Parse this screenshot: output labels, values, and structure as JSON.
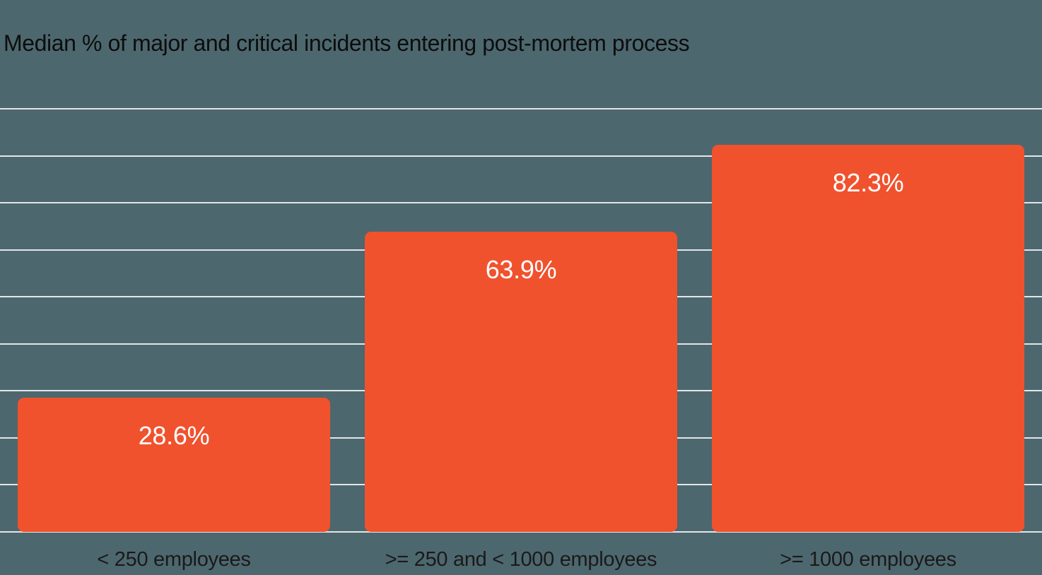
{
  "chart_data": {
    "type": "bar",
    "title": "Median % of major and critical incidents entering post-mortem process",
    "categories": [
      "< 250 employees",
      ">= 250 and < 1000 employees",
      ">= 1000 employees"
    ],
    "values": [
      28.6,
      63.9,
      82.3
    ],
    "value_labels": [
      "28.6%",
      "63.9%",
      "82.3%"
    ],
    "xlabel": "",
    "ylabel": "",
    "ylim": [
      0,
      90
    ],
    "gridline_step": 10,
    "grid": true,
    "legend": false,
    "y_axis_tick_labels_visible": false,
    "value_label_position": "inside-top",
    "colors": {
      "background": "#4D676E",
      "bar": "#F0522E",
      "gridline": "#E2E6E8",
      "title_text": "#0D0D0D",
      "value_label_text": "#FFFFFF",
      "category_label_text": "#1A1A1A"
    }
  }
}
